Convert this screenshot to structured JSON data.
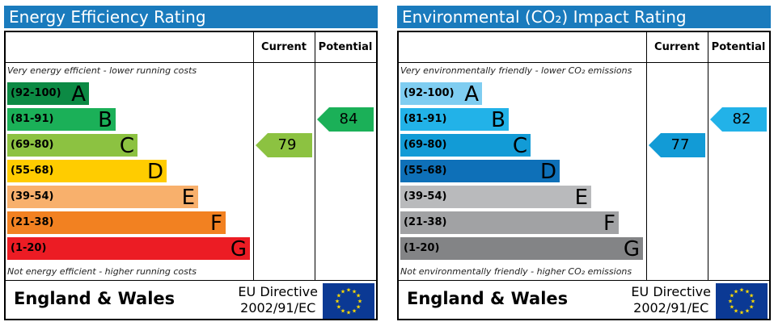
{
  "chart_data": [
    {
      "type": "bar",
      "title": "Energy Efficiency Rating",
      "header_color": "#1a7bbd",
      "columns": [
        "Current",
        "Potential"
      ],
      "top_note": "Very energy efficient - lower running costs",
      "bottom_note": "Not energy efficient - higher running costs",
      "bands": [
        {
          "range": "(92-100)",
          "letter": "A",
          "color": "#0c8a44",
          "text_color": "#000000"
        },
        {
          "range": "(81-91)",
          "letter": "B",
          "color": "#1bb058",
          "text_color": "#000000"
        },
        {
          "range": "(69-80)",
          "letter": "C",
          "color": "#8cc241",
          "text_color": "#000000"
        },
        {
          "range": "(55-68)",
          "letter": "D",
          "color": "#ffcc00",
          "text_color": "#000000"
        },
        {
          "range": "(39-54)",
          "letter": "E",
          "color": "#f8b06c",
          "text_color": "#000000"
        },
        {
          "range": "(21-38)",
          "letter": "F",
          "color": "#f28121",
          "text_color": "#000000"
        },
        {
          "range": "(1-20)",
          "letter": "G",
          "color": "#ec1c24",
          "text_color": "#000000"
        }
      ],
      "current": {
        "value": 79,
        "band": "C",
        "color": "#8cc241"
      },
      "potential": {
        "value": 84,
        "band": "B",
        "color": "#1bb058"
      },
      "footer": {
        "country": "England & Wales",
        "directive_line1": "EU Directive",
        "directive_line2": "2002/91/EC"
      }
    },
    {
      "type": "bar",
      "title": "Environmental (CO₂) Impact Rating",
      "header_color": "#1a7bbd",
      "columns": [
        "Current",
        "Potential"
      ],
      "top_note": "Very environmentally friendly - lower CO₂ emissions",
      "bottom_note": "Not environmentally friendly - higher CO₂ emissions",
      "bands": [
        {
          "range": "(92-100)",
          "letter": "A",
          "color": "#7fcdf1",
          "text_color": "#000000"
        },
        {
          "range": "(81-91)",
          "letter": "B",
          "color": "#22b2e8",
          "text_color": "#000000"
        },
        {
          "range": "(69-80)",
          "letter": "C",
          "color": "#129bd6",
          "text_color": "#000000"
        },
        {
          "range": "(55-68)",
          "letter": "D",
          "color": "#0e70b8",
          "text_color": "#000000"
        },
        {
          "range": "(39-54)",
          "letter": "E",
          "color": "#b9babc",
          "text_color": "#000000"
        },
        {
          "range": "(21-38)",
          "letter": "F",
          "color": "#a1a2a4",
          "text_color": "#000000"
        },
        {
          "range": "(1-20)",
          "letter": "G",
          "color": "#838486",
          "text_color": "#000000"
        }
      ],
      "current": {
        "value": 77,
        "band": "C",
        "color": "#129bd6"
      },
      "potential": {
        "value": 82,
        "band": "B",
        "color": "#22b2e8"
      },
      "footer": {
        "country": "England & Wales",
        "directive_line1": "EU Directive",
        "directive_line2": "2002/91/EC"
      }
    }
  ]
}
